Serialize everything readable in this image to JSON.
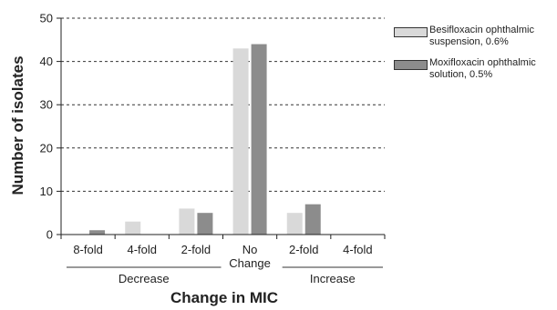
{
  "chart_data": {
    "type": "bar",
    "categories": [
      "8-fold",
      "4-fold",
      "2-fold",
      "No\nChange",
      "2-fold",
      "4-fold"
    ],
    "category_groups": [
      {
        "label": "Decrease",
        "categories": [
          0,
          1,
          2
        ]
      },
      {
        "label": "Increase",
        "categories": [
          4,
          5
        ]
      }
    ],
    "series": [
      {
        "name": "Besifloxacin ophthalmic\nsuspension, 0.6%",
        "color": "#d9d9d9",
        "values": [
          0,
          3,
          6,
          43,
          5,
          0
        ]
      },
      {
        "name": "Moxifloxacin ophthalmic\nsolution, 0.5%",
        "color": "#8c8c8c",
        "values": [
          1,
          0,
          5,
          44,
          7,
          0
        ]
      }
    ],
    "xlabel": "Change in MIC",
    "ylabel": "Number of isolates",
    "ylim": [
      0,
      50
    ],
    "yticks": [
      0,
      10,
      20,
      30,
      40,
      50
    ],
    "grid": "horizontal-dashed",
    "legend_position": "right"
  }
}
